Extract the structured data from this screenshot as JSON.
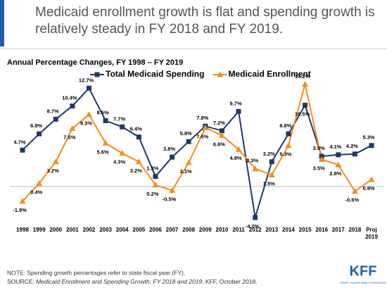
{
  "header": {
    "title": "Medicaid enrollment growth is flat and spending growth is relatively steady in FY 2018 and FY 2019."
  },
  "chart_data": {
    "type": "line",
    "title": "Annual Percentage Changes, FY 1998 – FY 2019",
    "categories": [
      "1998",
      "1999",
      "2000",
      "2001",
      "2002",
      "2003",
      "2004",
      "2005",
      "2006",
      "2007",
      "2008",
      "2009",
      "2010",
      "2011",
      "2012",
      "2013",
      "2014",
      "2015",
      "2016",
      "2017",
      "2018",
      "Proj 2019"
    ],
    "ylim": [
      -5,
      14
    ],
    "series": [
      {
        "name": "Total Medicaid Spending",
        "color": "#1f3864",
        "marker": "square",
        "values": [
          4.7,
          6.8,
          8.7,
          10.4,
          12.7,
          8.5,
          7.7,
          6.4,
          1.3,
          3.8,
          5.8,
          7.8,
          7.2,
          9.7,
          -4.0,
          3.2,
          6.8,
          10.5,
          3.9,
          4.1,
          4.2,
          5.3
        ],
        "value_labels": [
          "4.7%",
          "6.8%",
          "8.7%",
          "10.4%",
          "12.7%",
          "8.5%",
          "7.7%",
          "6.4%",
          "1.3%",
          "3.8%",
          "5.8%",
          "7.8%",
          "7.2%",
          "9.7%",
          "-4.0%",
          "3.2%",
          "6.8%",
          "10.5%",
          "3.9%",
          "4.1%",
          "4.2%",
          "5.3%"
        ]
      },
      {
        "name": "Medicaid Enrollment",
        "color": "#f28e1e",
        "marker": "triangle",
        "values": [
          -1.9,
          0.4,
          3.2,
          7.5,
          9.3,
          5.6,
          4.3,
          3.2,
          0.2,
          -0.5,
          3.1,
          7.6,
          6.6,
          4.8,
          2.3,
          1.5,
          5.3,
          13.2,
          3.5,
          2.8,
          -0.6,
          0.9
        ],
        "value_labels": [
          "-1.9%",
          "0.4%",
          "3.2%",
          "7.5%",
          "9.3%",
          "5.6%",
          "4.3%",
          "3.2%",
          "0.2%",
          "-0.5%",
          "3.1%",
          "7.6%",
          "6.6%",
          "4.8%",
          "2.3%",
          "1.5%",
          "5.3%",
          "13.2%",
          "3.5%",
          "2.8%",
          "-0.6%",
          "0.9%"
        ]
      }
    ]
  },
  "footer": {
    "note": "NOTE: Spending growth percentages refer to state fiscal year (FY).",
    "source_prefix": "SOURCE: ",
    "source_title": "Medicaid Enrollment and Spending Growth: FY 2018 and 2019",
    "source_suffix": "; KFF, October 2018.",
    "logo": "KFF",
    "logo_sub": "HENRY J KAISER FAMILY FOUNDATION"
  }
}
